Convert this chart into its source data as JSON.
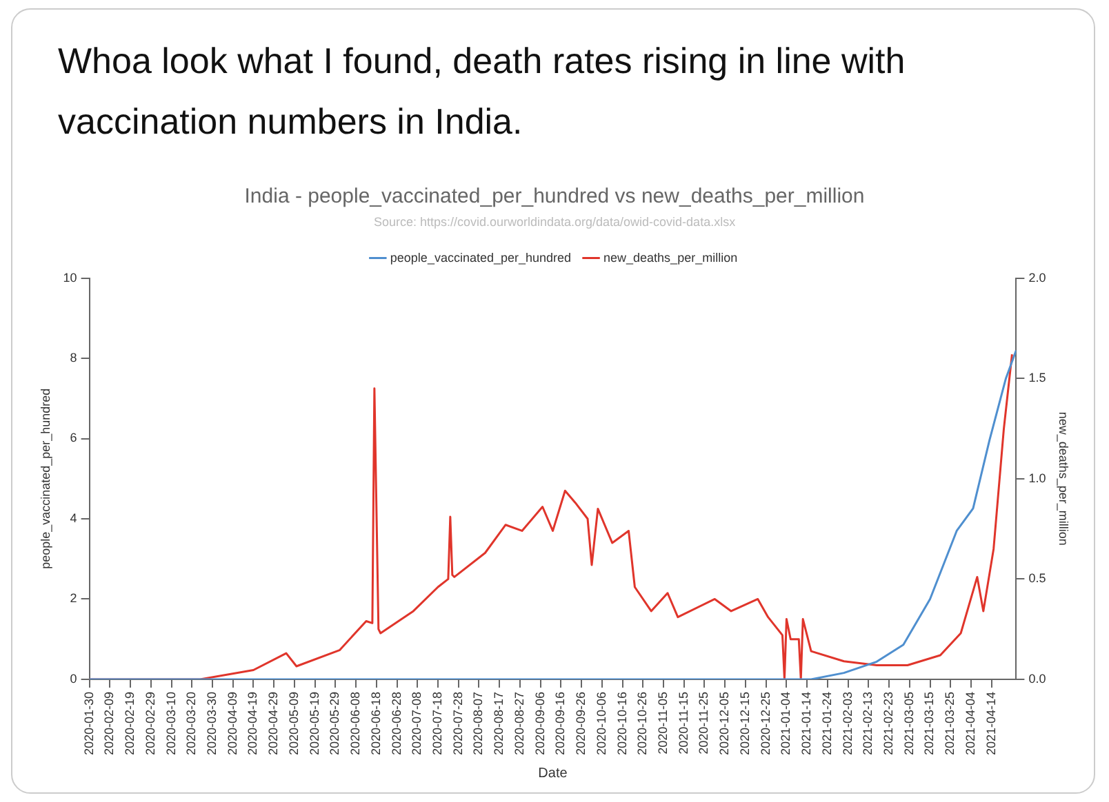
{
  "chart_data": {
    "type": "line",
    "title": "Whoa look what I found, death rates rising in line with vaccination numbers in India.",
    "subtitle": "India - people_vaccinated_per_hundred vs new_deaths_per_million",
    "annotations": [
      "Source: https://covid.ourworldindata.org/data/owid-covid-data.xlsx"
    ],
    "xlabel": "Date",
    "ylabel": "people_vaccinated_per_hundred",
    "y2label": "new_deaths_per_million",
    "legend": "top",
    "grid": false,
    "marker": "none",
    "line_style": "solid",
    "xlim": [
      "2020-01-30",
      "2021-04-26"
    ],
    "xticks": [
      "2020-01-30",
      "2020-02-09",
      "2020-02-19",
      "2020-02-29",
      "2020-03-10",
      "2020-03-20",
      "2020-03-30",
      "2020-04-09",
      "2020-04-19",
      "2020-04-29",
      "2020-05-09",
      "2020-05-19",
      "2020-05-29",
      "2020-06-08",
      "2020-06-18",
      "2020-06-28",
      "2020-07-08",
      "2020-07-18",
      "2020-07-28",
      "2020-08-07",
      "2020-08-17",
      "2020-08-27",
      "2020-09-06",
      "2020-09-16",
      "2020-09-26",
      "2020-10-06",
      "2020-10-16",
      "2020-10-26",
      "2020-11-05",
      "2020-11-15",
      "2020-11-25",
      "2020-12-05",
      "2020-12-15",
      "2020-12-25",
      "2021-01-04",
      "2021-01-14",
      "2021-01-24",
      "2021-02-03",
      "2021-02-13",
      "2021-02-23",
      "2021-03-05",
      "2021-03-15",
      "2021-03-25",
      "2021-04-04",
      "2021-04-14"
    ],
    "ylim": [
      0,
      10
    ],
    "yticks": [
      0,
      2,
      4,
      6,
      8,
      10
    ],
    "y2lim": [
      0,
      2
    ],
    "y2ticks": [
      {
        "value": 0,
        "label": "0.0"
      },
      {
        "value": 0.5,
        "label": "0.5"
      },
      {
        "value": 1,
        "label": "1.0"
      },
      {
        "value": 1.5,
        "label": "1.5"
      },
      {
        "value": 2,
        "label": "2.0"
      }
    ],
    "series": [
      {
        "name": "people_vaccinated_per_hundred",
        "color": "#4f8fcf",
        "x": [
          "2020-01-30",
          "2021-01-16",
          "2021-02-01",
          "2021-02-17",
          "2021-03-02",
          "2021-03-15",
          "2021-03-28",
          "2021-04-05",
          "2021-04-13",
          "2021-04-21",
          "2021-04-26"
        ],
        "values": [
          0,
          0,
          0.16,
          0.44,
          0.86,
          2.0,
          3.7,
          4.26,
          5.96,
          7.5,
          8.2
        ]
      },
      {
        "name": "new_deaths_per_million",
        "color": "#e0352b",
        "axis": "y2",
        "x": [
          "2020-01-30",
          "2020-03-24",
          "2020-04-19",
          "2020-05-05",
          "2020-05-10",
          "2020-05-31",
          "2020-06-13",
          "2020-06-16",
          "2020-06-17",
          "2020-06-19",
          "2020-06-20",
          "2020-07-06",
          "2020-07-18",
          "2020-07-23",
          "2020-07-24",
          "2020-07-25",
          "2020-07-26",
          "2020-08-10",
          "2020-08-20",
          "2020-08-28",
          "2020-09-07",
          "2020-09-12",
          "2020-09-18",
          "2020-09-23",
          "2020-09-29",
          "2020-10-01",
          "2020-10-04",
          "2020-10-11",
          "2020-10-19",
          "2020-10-22",
          "2020-10-30",
          "2020-11-07",
          "2020-11-12",
          "2020-11-30",
          "2020-12-08",
          "2020-12-21",
          "2020-12-26",
          "2021-01-02",
          "2021-01-03",
          "2021-01-04",
          "2021-01-06",
          "2021-01-10",
          "2021-01-11",
          "2021-01-12",
          "2021-01-16",
          "2021-02-01",
          "2021-02-17",
          "2021-03-04",
          "2021-03-20",
          "2021-03-30",
          "2021-04-07",
          "2021-04-10",
          "2021-04-15",
          "2021-04-20",
          "2021-04-24"
        ],
        "values": [
          0,
          0,
          0.046,
          0.13,
          0.065,
          0.145,
          0.29,
          0.28,
          1.45,
          0.25,
          0.23,
          0.34,
          0.46,
          0.5,
          0.81,
          0.52,
          0.51,
          0.63,
          0.77,
          0.74,
          0.86,
          0.74,
          0.94,
          0.88,
          0.8,
          0.57,
          0.85,
          0.68,
          0.74,
          0.46,
          0.34,
          0.43,
          0.31,
          0.4,
          0.34,
          0.4,
          0.31,
          0.22,
          0,
          0.3,
          0.2,
          0.2,
          0,
          0.3,
          0.14,
          0.09,
          0.07,
          0.07,
          0.12,
          0.23,
          0.51,
          0.34,
          0.65,
          1.25,
          1.62
        ]
      }
    ]
  }
}
